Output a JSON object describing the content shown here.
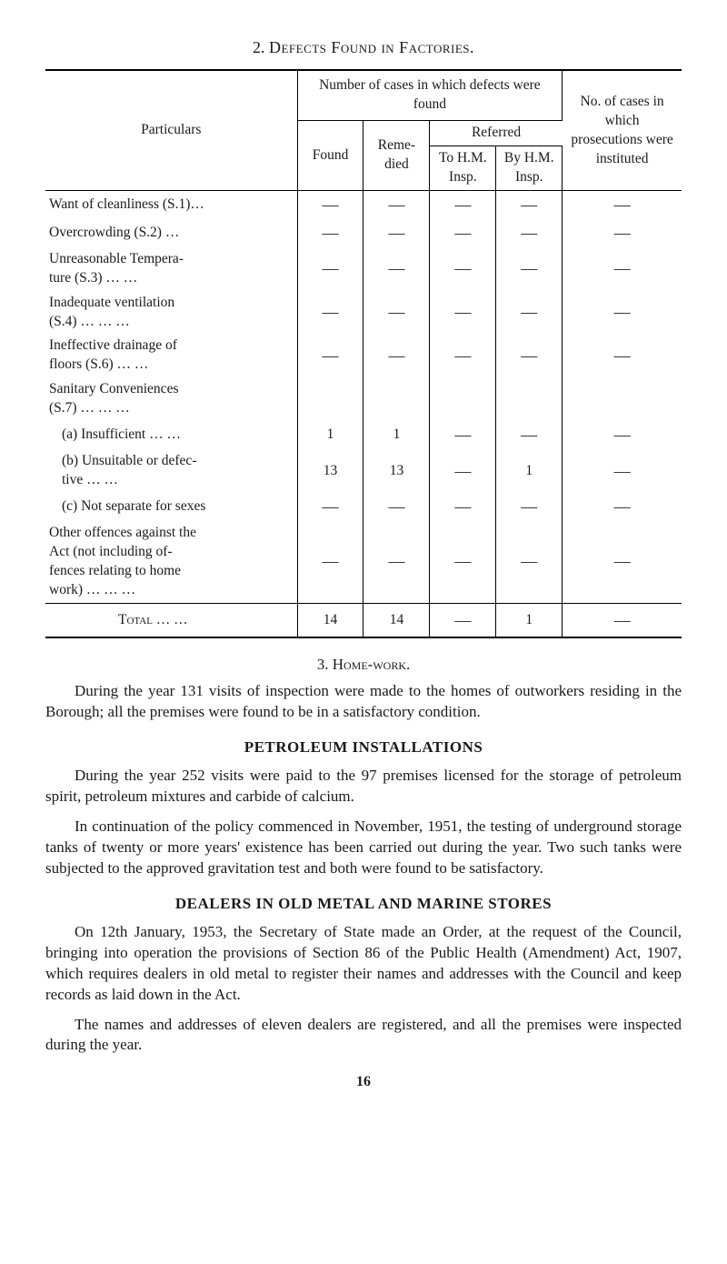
{
  "section2": {
    "number": "2.",
    "title": "Defects Found in Factories."
  },
  "table": {
    "headers": {
      "particulars": "Particulars",
      "group": "Number of cases in which defects were found",
      "noc": "No. of cases in which prosecutions were instituted",
      "found": "Found",
      "remedied": "Reme-\ndied",
      "referred": "Referred",
      "tohm": "To H.M. Insp.",
      "byhm": "By H.M. Insp."
    },
    "rows": [
      {
        "label": "Want of cleanliness (S.1)…",
        "found": "—",
        "remedied": "—",
        "tohm": "—",
        "byhm": "—",
        "noc": "—"
      },
      {
        "label": "Overcrowding (S.2)    …",
        "found": "—",
        "remedied": "—",
        "tohm": "—",
        "byhm": "—",
        "noc": "—"
      },
      {
        "label": "Unreasonable Tempera-\n  ture (S.3)    …   …",
        "found": "—",
        "remedied": "—",
        "tohm": "—",
        "byhm": "—",
        "noc": "—"
      },
      {
        "label": "Inadequate     ventilation\n  (S.4)   …   …   …",
        "found": "—",
        "remedied": "—",
        "tohm": "—",
        "byhm": "—",
        "noc": "—"
      },
      {
        "label": "Ineffective   drainage   of\n  floors (S.6)   …   …",
        "found": "—",
        "remedied": "—",
        "tohm": "—",
        "byhm": "—",
        "noc": "—"
      },
      {
        "label": "Sanitary     Conveniences\n  (S.7)   …   …   …",
        "found": "",
        "remedied": "",
        "tohm": "",
        "byhm": "",
        "noc": ""
      },
      {
        "label": "(a) Insufficient …   …",
        "indent": 1,
        "found": "1",
        "remedied": "1",
        "tohm": "—",
        "byhm": "—",
        "noc": "—"
      },
      {
        "label": "(b) Unsuitable or defec-\n     tive    …   …",
        "indent": 1,
        "found": "13",
        "remedied": "13",
        "tohm": "—",
        "byhm": "1",
        "noc": "—"
      },
      {
        "label": "(c) Not separate for sexes",
        "indent": 1,
        "found": "—",
        "remedied": "—",
        "tohm": "—",
        "byhm": "—",
        "noc": "—"
      },
      {
        "label": "Other offences against the\n  Act (not including of-\n  fences relating to home\n  work)   …   …   …",
        "found": "—",
        "remedied": "—",
        "tohm": "—",
        "byhm": "—",
        "noc": "—"
      }
    ],
    "total": {
      "label": "Total …   …",
      "found": "14",
      "remedied": "14",
      "tohm": "—",
      "byhm": "1",
      "noc": "—"
    }
  },
  "section3": {
    "number": "3.",
    "title": "Home-work.",
    "body": "During the year 131 visits of inspection were made to the homes of outworkers residing in the Borough; all the premises were found to be in a satisfactory condition."
  },
  "petroleum": {
    "title": "PETROLEUM INSTALLATIONS",
    "p1": "During the year 252 visits were paid to the 97 premises licensed for the storage of petroleum spirit, petroleum mixtures and carbide of calcium.",
    "p2": "In continuation of the policy commenced in November, 1951, the testing of underground storage tanks of twenty or more years' existence has been carried out during the year. Two such tanks were subjected to the approved gravitation test and both were found to be satisfactory."
  },
  "dealers": {
    "title": "DEALERS IN OLD METAL AND MARINE STORES",
    "p1": "On 12th January, 1953, the Secretary of State made an Order, at the request of the Council, bringing into operation the pro­visions of Section 86 of the Public Health (Amendment) Act, 1907, which requires dealers in old metal to register their names and addresses with the Council and keep records as laid down in the Act.",
    "p2": "The names and addresses of eleven dealers are registered, and all the premises were inspected during the year."
  },
  "page_number": "16"
}
